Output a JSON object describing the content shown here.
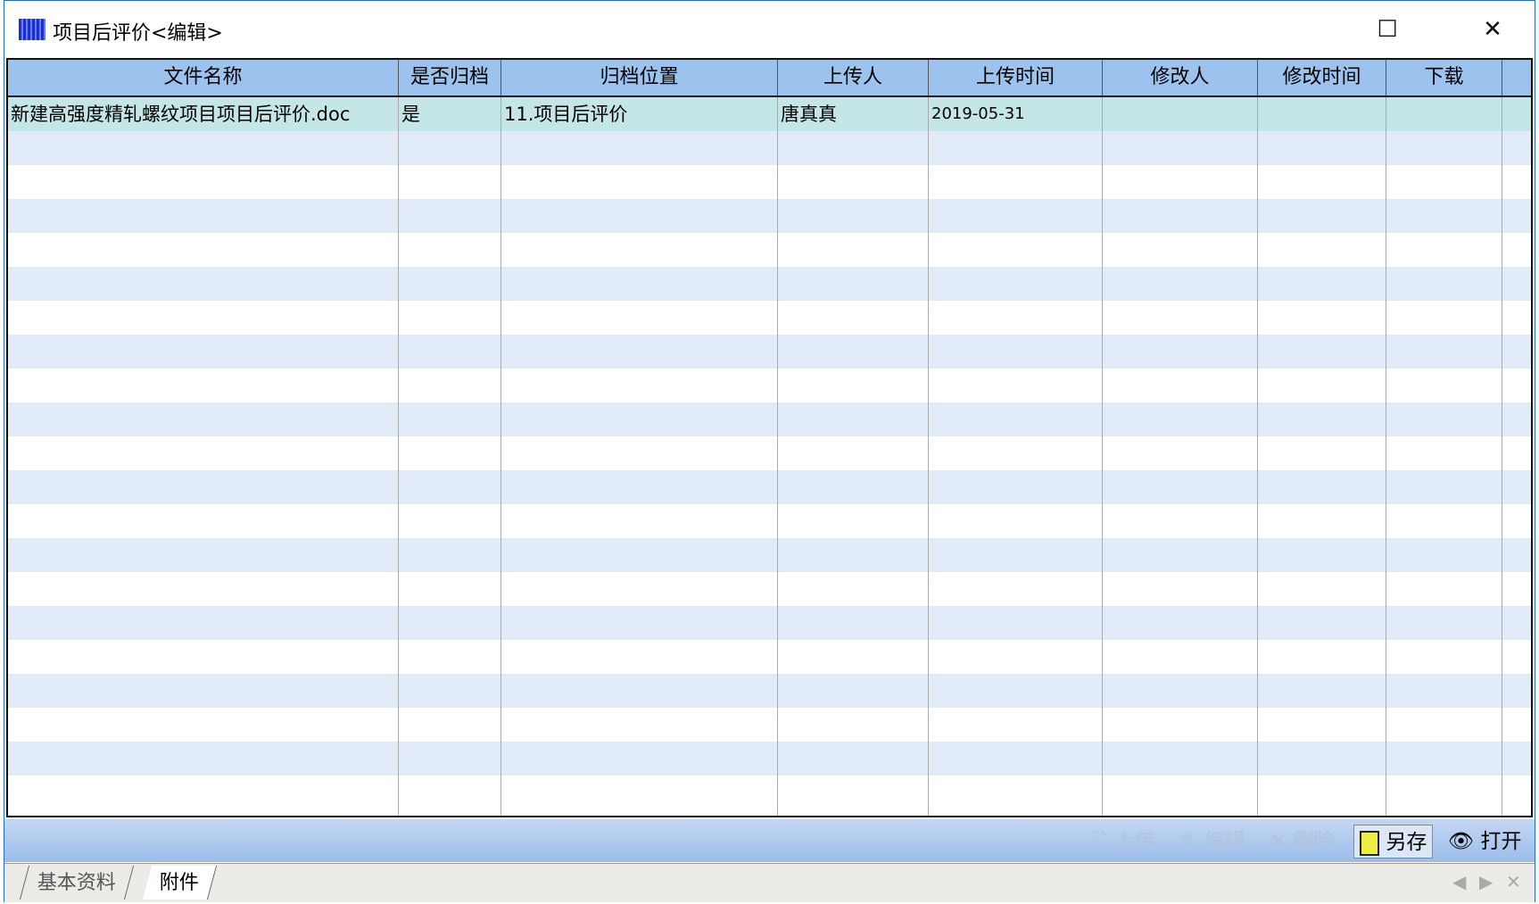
{
  "window": {
    "title": "项目后评价<编辑>",
    "minimize": "—",
    "maximize": "☐",
    "close": "✕"
  },
  "table": {
    "columns": [
      "文件名称",
      "是否归档",
      "归档位置",
      "上传人",
      "上传时间",
      "修改人",
      "修改时间",
      "下载"
    ],
    "rows": [
      [
        "新建高强度精轧螺纹项目项目后评价.doc",
        "是",
        "11.项目后评价",
        "唐真真",
        "2019-05-31",
        "",
        "",
        ""
      ]
    ]
  },
  "toolbar": {
    "upload": "上传",
    "edit": "编辑",
    "delete": "删除",
    "save_as": "另存",
    "open": "打开"
  },
  "tabs": [
    {
      "label": "基本资料"
    },
    {
      "label": "附件",
      "active": true
    }
  ],
  "colors": {
    "header": "#9cc3ee",
    "alt_row": "#e1ecf8",
    "selected_row": "#c4e6e6",
    "toolbar": "#9cbde9"
  }
}
